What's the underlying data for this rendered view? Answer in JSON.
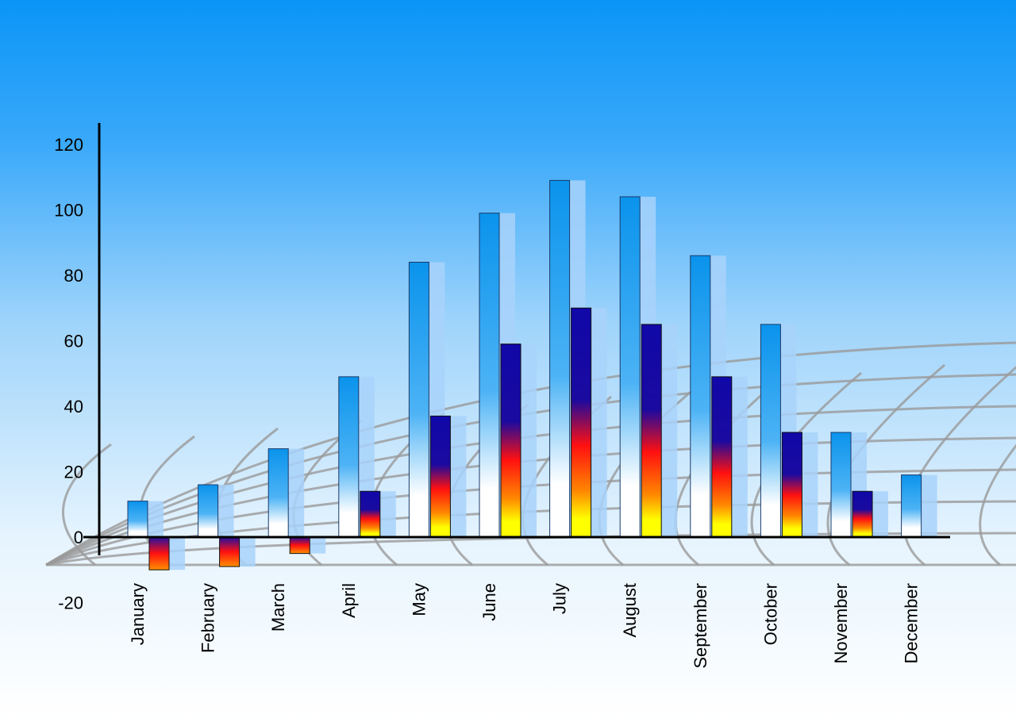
{
  "chart_data": {
    "type": "bar",
    "title": "",
    "xlabel": "",
    "ylabel": "",
    "ylim": [
      -20,
      120
    ],
    "yticks": [
      -20,
      0,
      20,
      40,
      60,
      80,
      100,
      120
    ],
    "grid": false,
    "categories": [
      "January",
      "February",
      "March",
      "April",
      "May",
      "June",
      "July",
      "August",
      "September",
      "October",
      "November",
      "December"
    ],
    "series": [
      {
        "values": [
          11,
          16,
          27,
          49,
          84,
          99,
          109,
          104,
          86,
          65,
          32,
          19
        ],
        "color": "#1a9cf0"
      },
      {
        "values": [
          -10,
          -9,
          -5,
          14,
          37,
          59,
          70,
          65,
          49,
          32,
          14,
          null
        ],
        "color": "#1a10a8"
      }
    ],
    "colors": {
      "background_top": "#0a95f7",
      "background_bottom": "#ffffff",
      "axis": "#000000",
      "decor_grid": "#9a9a9a"
    }
  }
}
